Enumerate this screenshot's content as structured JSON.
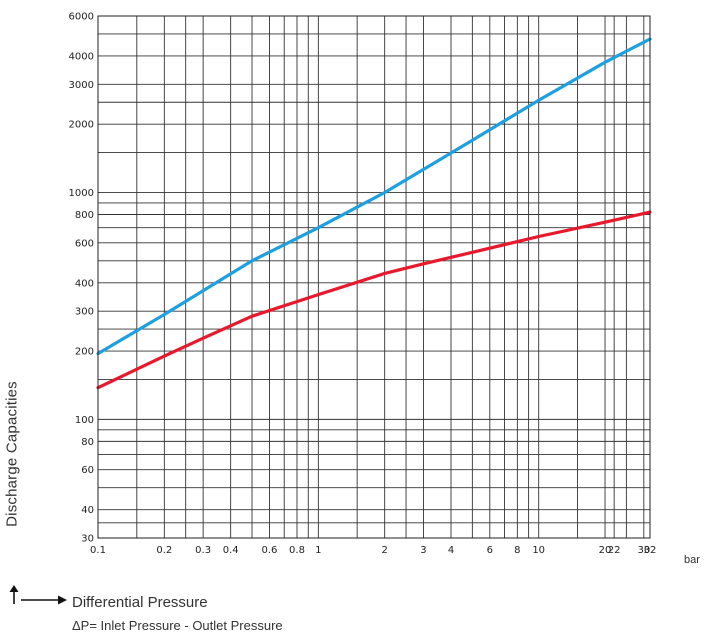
{
  "chart_data": {
    "type": "line",
    "xscale": "log",
    "yscale": "log",
    "xlim": [
      0.1,
      32
    ],
    "ylim": [
      30,
      6000
    ],
    "x_unit": "bar",
    "xlabel": "Differential Pressure",
    "ylabel": "Discharge Capacities",
    "note": "ΔP= Inlet Pressure - Outlet Pressure",
    "x_ticks": [
      {
        "v": 0.1,
        "label": "0.1"
      },
      {
        "v": 0.2,
        "label": "0.2"
      },
      {
        "v": 0.3,
        "label": "0.3"
      },
      {
        "v": 0.4,
        "label": "0.4"
      },
      {
        "v": 0.6,
        "label": "0.6"
      },
      {
        "v": 0.8,
        "label": "0.8"
      },
      {
        "v": 1,
        "label": "1"
      },
      {
        "v": 2,
        "label": "2"
      },
      {
        "v": 3,
        "label": "3"
      },
      {
        "v": 4,
        "label": "4"
      },
      {
        "v": 6,
        "label": "6"
      },
      {
        "v": 8,
        "label": "8"
      },
      {
        "v": 10,
        "label": "10"
      },
      {
        "v": 20,
        "label": "20"
      },
      {
        "v": 22,
        "label": "22"
      },
      {
        "v": 30,
        "label": "30"
      },
      {
        "v": 32,
        "label": "32"
      }
    ],
    "y_ticks": [
      {
        "v": 30,
        "label": "30"
      },
      {
        "v": 40,
        "label": "40"
      },
      {
        "v": 60,
        "label": "60"
      },
      {
        "v": 80,
        "label": "80"
      },
      {
        "v": 100,
        "label": "100"
      },
      {
        "v": 200,
        "label": "200"
      },
      {
        "v": 300,
        "label": "300"
      },
      {
        "v": 400,
        "label": "400"
      },
      {
        "v": 600,
        "label": "600"
      },
      {
        "v": 800,
        "label": "800"
      },
      {
        "v": 1000,
        "label": "1000"
      },
      {
        "v": 2000,
        "label": "2000"
      },
      {
        "v": 3000,
        "label": "3000"
      },
      {
        "v": 4000,
        "label": "4000"
      },
      {
        "v": 6000,
        "label": "6000"
      }
    ],
    "grid_x": [
      0.1,
      0.15,
      0.2,
      0.25,
      0.3,
      0.4,
      0.5,
      0.6,
      0.7,
      0.8,
      0.9,
      1,
      1.5,
      2,
      2.5,
      3,
      4,
      5,
      6,
      7,
      8,
      9,
      10,
      15,
      20,
      22,
      25,
      30,
      32
    ],
    "grid_y": [
      30,
      35,
      40,
      50,
      60,
      70,
      80,
      90,
      100,
      150,
      200,
      250,
      300,
      400,
      500,
      600,
      700,
      800,
      900,
      1000,
      1500,
      2000,
      2500,
      3000,
      4000,
      5000,
      6000
    ],
    "grid": true,
    "series": [
      {
        "color": "#1ea0e0",
        "x": [
          0.1,
          0.2,
          0.5,
          1,
          2,
          5,
          10,
          20,
          32
        ],
        "y": [
          195,
          290,
          500,
          700,
          1000,
          1700,
          2550,
          3750,
          4750
        ]
      },
      {
        "color": "#e8192c",
        "x": [
          0.1,
          0.2,
          0.3,
          0.5,
          1,
          2,
          3,
          5,
          10,
          20,
          32
        ],
        "y": [
          138,
          190,
          228,
          285,
          355,
          440,
          485,
          545,
          640,
          740,
          820
        ]
      }
    ]
  }
}
